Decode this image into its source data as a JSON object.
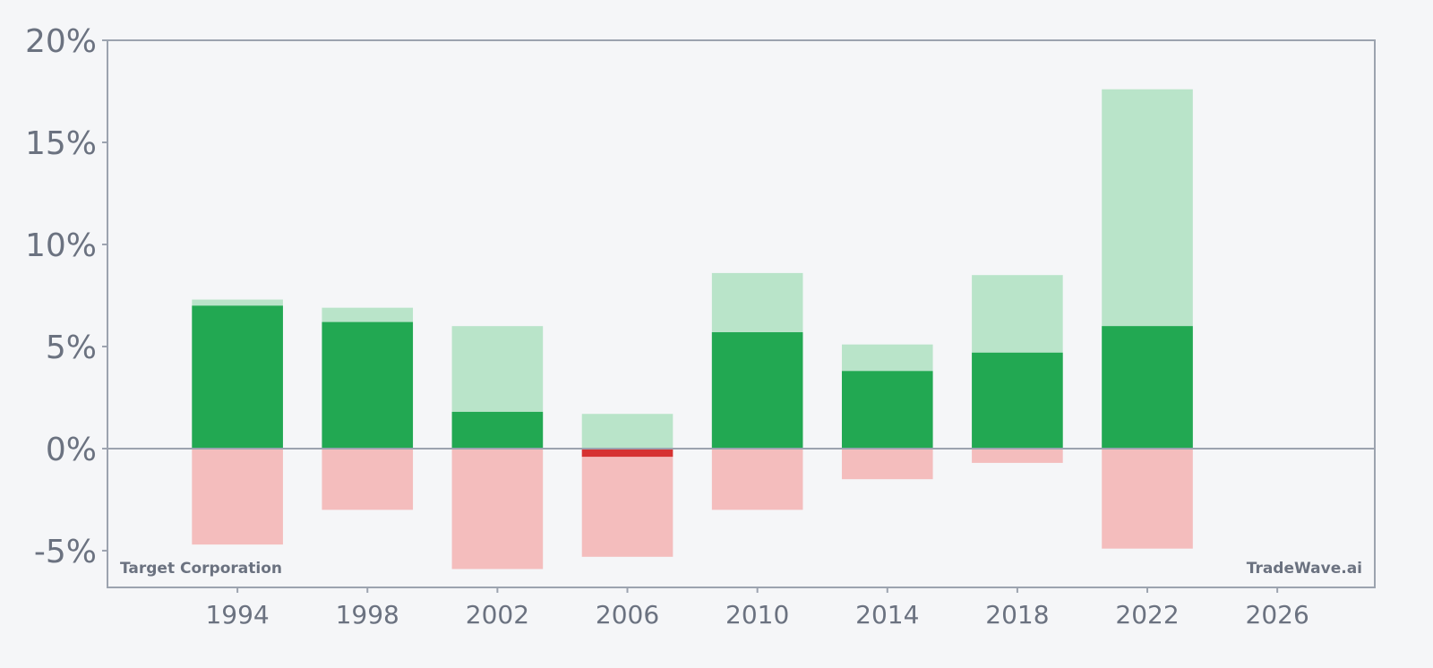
{
  "chart_data": {
    "type": "bar",
    "x": [
      1994,
      1998,
      2002,
      2006,
      2010,
      2014,
      2018,
      2022
    ],
    "series": [
      {
        "values": [
          7.0,
          6.2,
          1.8,
          -0.4,
          5.7,
          3.8,
          4.7,
          6.0
        ],
        "color_positive": "#22a852",
        "color_negative": "#d63232"
      },
      {
        "values": [
          7.3,
          6.9,
          6.0,
          1.7,
          8.6,
          5.1,
          8.5,
          17.6
        ],
        "color": "#b9e4c9"
      },
      {
        "values": [
          -4.7,
          -3.0,
          -5.9,
          -5.3,
          -3.0,
          -1.5,
          -0.7,
          -4.9
        ],
        "color": "#f4bdbd"
      }
    ],
    "xlim": [
      1990,
      2029
    ],
    "xticks": [
      1994,
      1998,
      2002,
      2006,
      2010,
      2014,
      2018,
      2022,
      2026
    ],
    "ylim": [
      -6.8,
      20
    ],
    "yticks": [
      -5,
      0,
      5,
      10,
      15,
      20
    ],
    "ytick_format": "%",
    "bar_width_years": 2.8,
    "grid": false,
    "colors": {
      "background": "#f5f6f8",
      "axis": "#9ca3af",
      "text": "#6b7280"
    }
  },
  "labels": {
    "company": "Target Corporation",
    "brand": "TradeWave.ai"
  }
}
